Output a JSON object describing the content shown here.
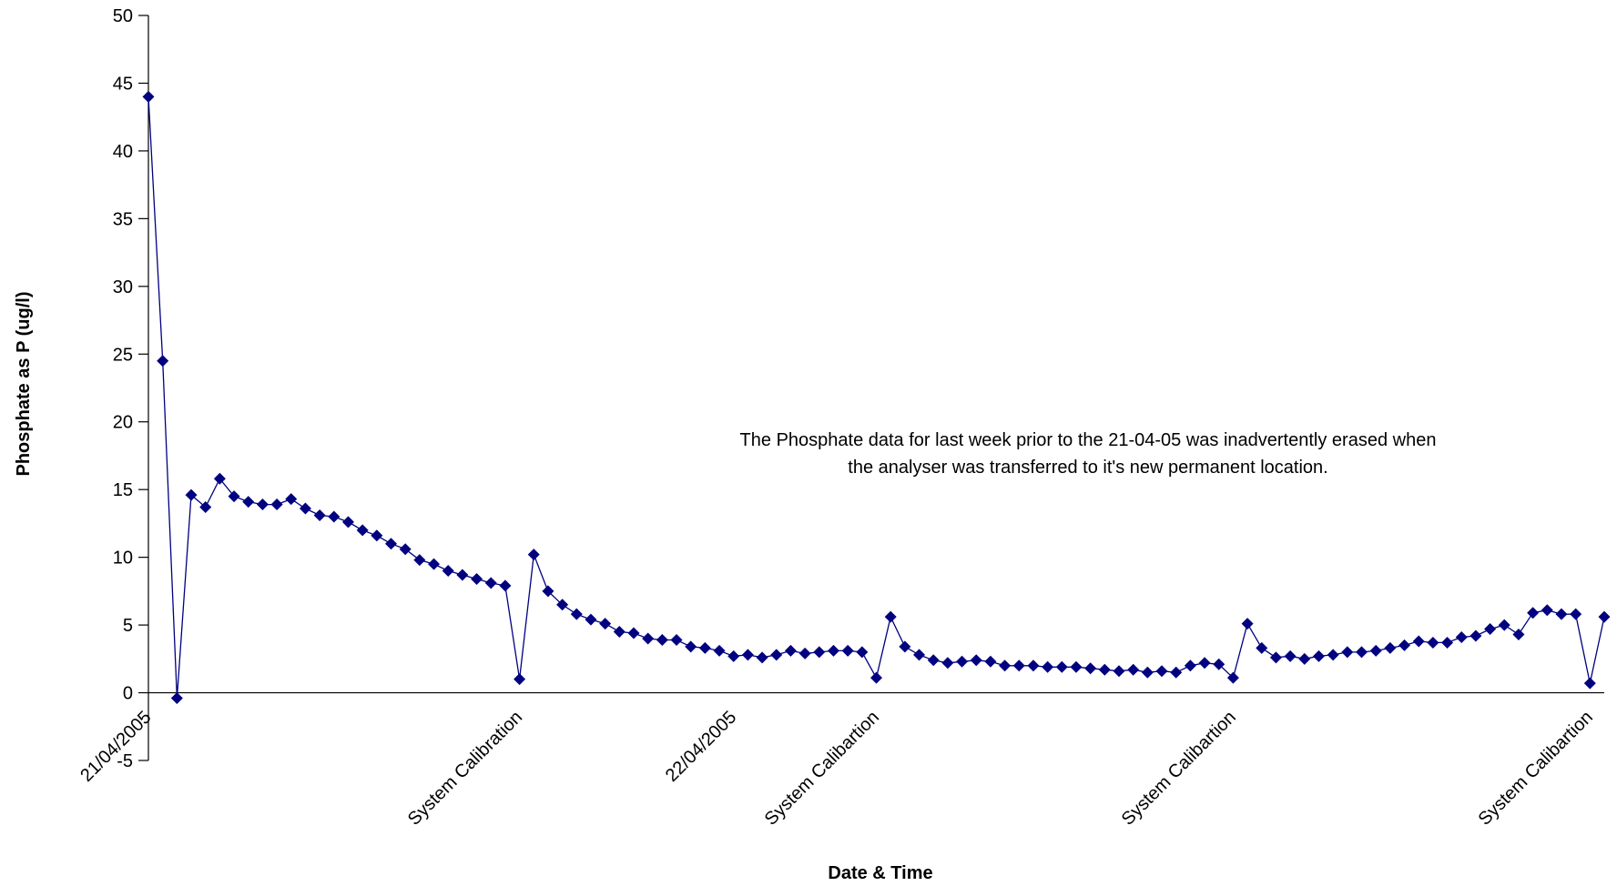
{
  "chart_data": {
    "type": "line",
    "title": "",
    "xlabel": "Date & Time",
    "ylabel": "Phosphate as P (ug/l)",
    "ylim": [
      -5,
      50
    ],
    "yticks": [
      -5,
      0,
      5,
      10,
      15,
      20,
      25,
      30,
      35,
      40,
      45,
      50
    ],
    "grid": false,
    "legend": "none",
    "colors": {
      "series": "#000080",
      "axis": "#000000"
    },
    "x_tick_labels": [
      {
        "index": 0,
        "label": "21/04/2005"
      },
      {
        "index": 26,
        "label": "System Calibration"
      },
      {
        "index": 41,
        "label": "22/04/2005"
      },
      {
        "index": 51,
        "label": "System Calibartion"
      },
      {
        "index": 76,
        "label": "System Calibartion"
      },
      {
        "index": 101,
        "label": "System Calibartion"
      }
    ],
    "annotation": [
      "The Phosphate data for last week prior to the 21-04-05 was inadvertently erased when",
      "the analyser was transferred to it's new permanent location."
    ],
    "series": [
      {
        "values": [
          44.0,
          24.5,
          -0.4,
          14.6,
          13.7,
          15.8,
          14.5,
          14.1,
          13.9,
          13.9,
          14.3,
          13.6,
          13.1,
          13.0,
          12.6,
          12.0,
          11.6,
          11.0,
          10.6,
          9.8,
          9.5,
          9.0,
          8.7,
          8.4,
          8.1,
          7.9,
          1.0,
          10.2,
          7.5,
          6.5,
          5.8,
          5.4,
          5.1,
          4.5,
          4.4,
          4.0,
          3.9,
          3.9,
          3.4,
          3.3,
          3.1,
          2.7,
          2.8,
          2.6,
          2.8,
          3.1,
          2.9,
          3.0,
          3.1,
          3.1,
          3.0,
          1.1,
          5.6,
          3.4,
          2.8,
          2.4,
          2.2,
          2.3,
          2.4,
          2.3,
          2.0,
          2.0,
          2.0,
          1.9,
          1.9,
          1.9,
          1.8,
          1.7,
          1.6,
          1.7,
          1.5,
          1.6,
          1.5,
          2.0,
          2.2,
          2.1,
          1.1,
          5.1,
          3.3,
          2.6,
          2.7,
          2.5,
          2.7,
          2.8,
          3.0,
          3.0,
          3.1,
          3.3,
          3.5,
          3.8,
          3.7,
          3.7,
          4.1,
          4.2,
          4.7,
          5.0,
          4.3,
          5.9,
          6.1,
          5.8,
          5.8,
          0.7,
          5.6
        ]
      }
    ]
  }
}
